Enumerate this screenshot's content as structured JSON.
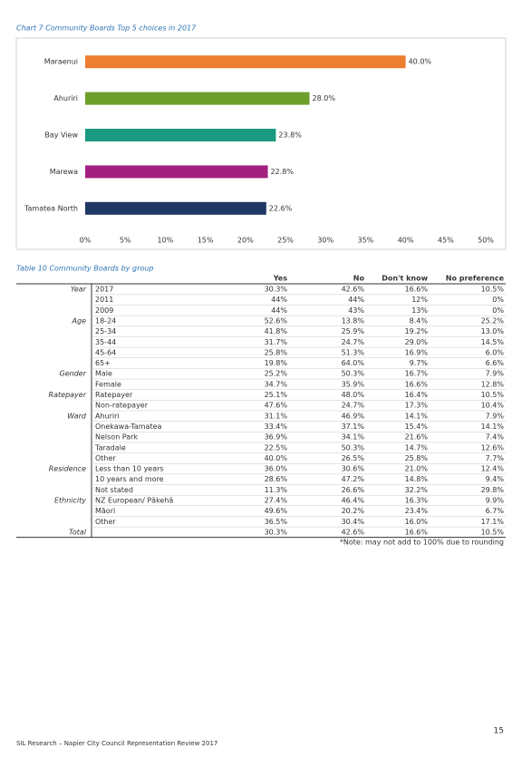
{
  "chart_data": {
    "type": "bar",
    "orientation": "horizontal",
    "title": "Chart 7 Community Boards Top 5 choices in 2017",
    "categories": [
      "Maraenui",
      "Ahuriri",
      "Bay View",
      "Marewa",
      "Tamatea North"
    ],
    "values": [
      40.0,
      28.0,
      23.8,
      22.8,
      22.6
    ],
    "value_labels": [
      "40.0%",
      "28.0%",
      "23.8%",
      "22.8%",
      "22.6%"
    ],
    "colors": [
      "#ed7d31",
      "#6e9f2b",
      "#1a9a80",
      "#a3207f",
      "#1f3864"
    ],
    "xlim": [
      0,
      50
    ],
    "xticks": [
      {
        "value": 0,
        "label": "0%"
      },
      {
        "value": 5,
        "label": "5%"
      },
      {
        "value": 10,
        "label": "10%"
      },
      {
        "value": 15,
        "label": "15%"
      },
      {
        "value": 20,
        "label": "20%"
      },
      {
        "value": 25,
        "label": "25%"
      },
      {
        "value": 30,
        "label": "30%"
      },
      {
        "value": 35,
        "label": "35%"
      },
      {
        "value": 40,
        "label": "40%"
      },
      {
        "value": 45,
        "label": "45%"
      },
      {
        "value": 50,
        "label": "50%"
      }
    ],
    "grid": false
  },
  "table": {
    "title": "Table 10 Community Boards by group",
    "header": [
      "Yes",
      "No",
      "Don't know",
      "No preference"
    ],
    "rows": [
      [
        "Year",
        "2017",
        "30.3%",
        "42.6%",
        "16.6%",
        "10.5%"
      ],
      [
        null,
        "2011",
        "44%",
        "44%",
        "12%",
        "0%"
      ],
      [
        null,
        "2009",
        "44%",
        "43%",
        "13%",
        "0%"
      ],
      [
        "Age",
        "18-24",
        "52.6%",
        "13.8%",
        "8.4%",
        "25.2%"
      ],
      [
        null,
        "25-34",
        "41.8%",
        "25.9%",
        "19.2%",
        "13.0%"
      ],
      [
        null,
        "35-44",
        "31.7%",
        "24.7%",
        "29.0%",
        "14.5%"
      ],
      [
        null,
        "45-64",
        "25.8%",
        "51.3%",
        "16.9%",
        "6.0%"
      ],
      [
        null,
        "65+",
        "19.8%",
        "64.0%",
        "9.7%",
        "6.6%"
      ],
      [
        "Gender",
        "Male",
        "25.2%",
        "50.3%",
        "16.7%",
        "7.9%"
      ],
      [
        null,
        "Female",
        "34.7%",
        "35.9%",
        "16.6%",
        "12.8%"
      ],
      [
        "Ratepayer",
        "Ratepayer",
        "25.1%",
        "48.0%",
        "16.4%",
        "10.5%"
      ],
      [
        null,
        "Non-ratepayer",
        "47.6%",
        "24.7%",
        "17.3%",
        "10.4%"
      ],
      [
        "Ward",
        "Ahuriri",
        "31.1%",
        "46.9%",
        "14.1%",
        "7.9%"
      ],
      [
        null,
        "Onekawa-Tamatea",
        "33.4%",
        "37.1%",
        "15.4%",
        "14.1%"
      ],
      [
        null,
        "Nelson Park",
        "36.9%",
        "34.1%",
        "21.6%",
        "7.4%"
      ],
      [
        null,
        "Taradale",
        "22.5%",
        "50.3%",
        "14.7%",
        "12.6%"
      ],
      [
        null,
        "Other",
        "40.0%",
        "26.5%",
        "25.8%",
        "7.7%"
      ],
      [
        "Residence",
        "Less than 10 years",
        "36.0%",
        "30.6%",
        "21.0%",
        "12.4%"
      ],
      [
        null,
        "10 years and more",
        "28.6%",
        "47.2%",
        "14.8%",
        "9.4%"
      ],
      [
        null,
        "Not stated",
        "11.3%",
        "26.6%",
        "32.2%",
        "29.8%"
      ],
      [
        "Ethnicity",
        "NZ European/ Pākehā",
        "27.4%",
        "46.4%",
        "16.3%",
        "9.9%"
      ],
      [
        null,
        "Māori",
        "49.6%",
        "20.2%",
        "23.4%",
        "6.7%"
      ],
      [
        null,
        "Other",
        "36.5%",
        "30.4%",
        "16.0%",
        "17.1%"
      ],
      [
        "Total",
        null,
        "30.3%",
        "42.6%",
        "16.6%",
        "10.5%"
      ]
    ],
    "note": "*Note: may not add to 100% due to rounding"
  },
  "footer": {
    "text": "SIL Research – Napier City Council Representation Review 2017",
    "page_number": "15"
  }
}
